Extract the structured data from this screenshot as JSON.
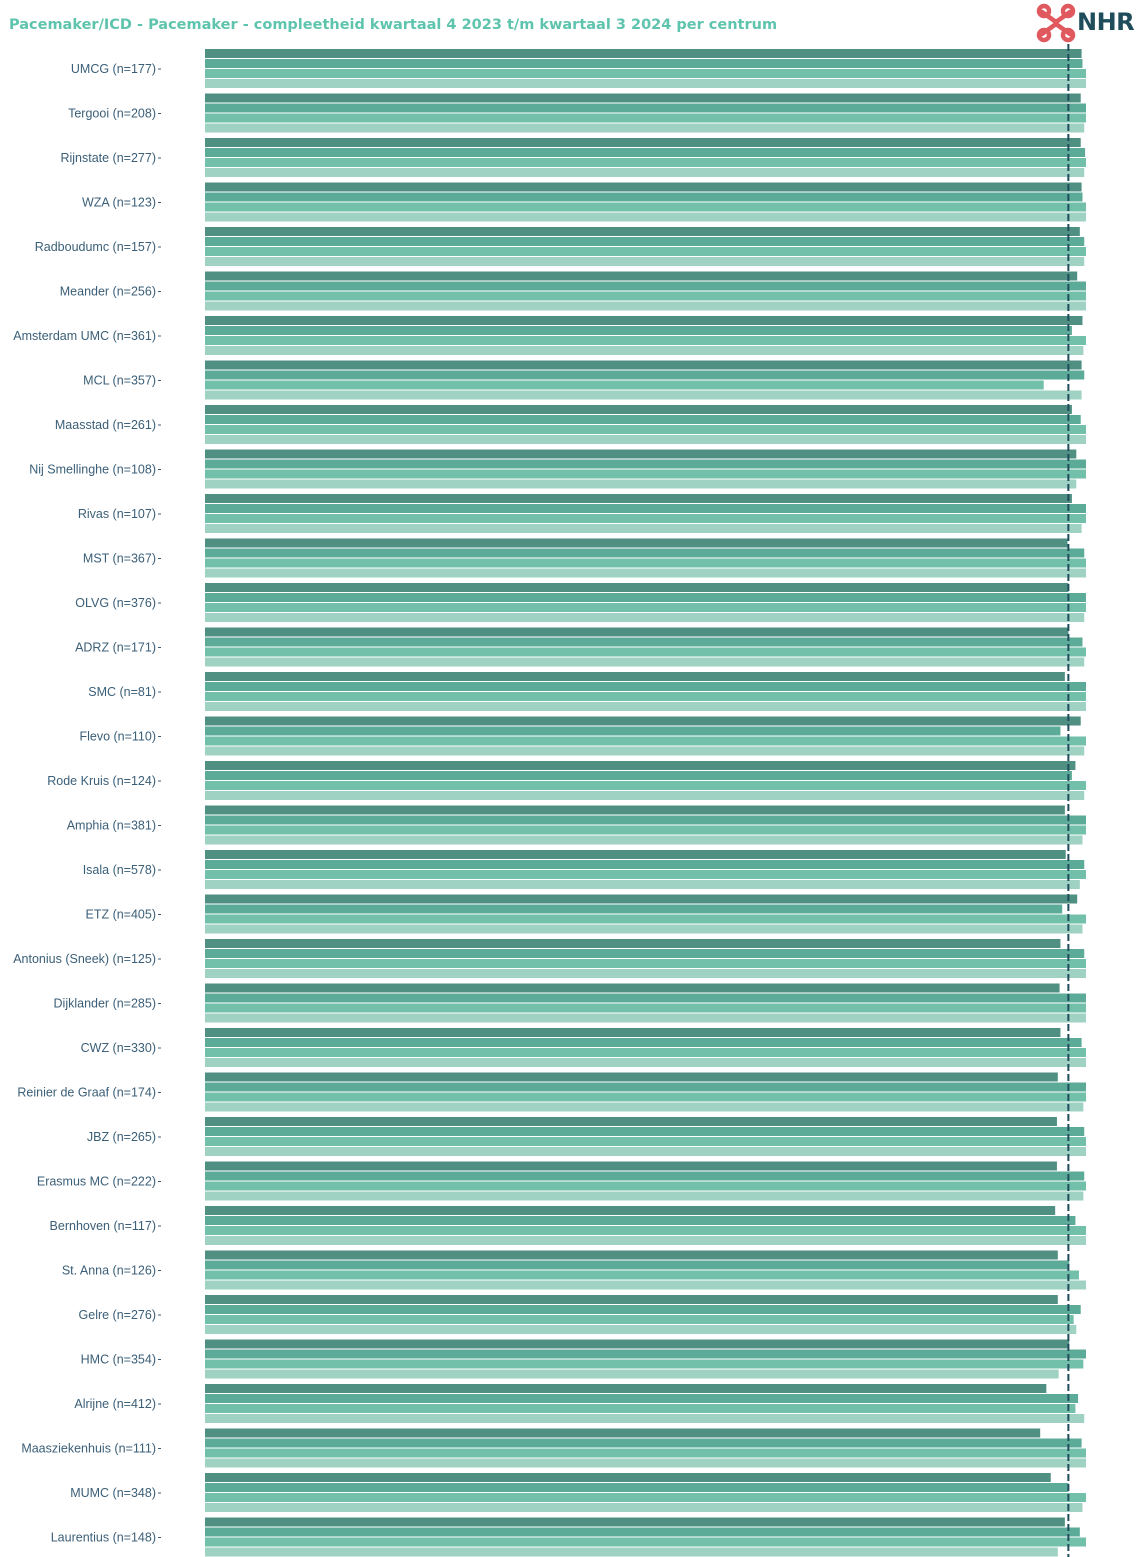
{
  "title": "Pacemaker/ICD - Pacemaker - compleetheid kwartaal 4 2023 t/m kwartaal 3 2024 per centrum",
  "logo": {
    "text": "NHR",
    "icon": "nhr-cross-logo-icon",
    "color": "#e0595f"
  },
  "colors": {
    "series": [
      "#4f9083",
      "#5caa98",
      "#72bfaa",
      "#9fd2c2"
    ],
    "reference_line": "#1f4d5c",
    "label": "#3b5f78"
  },
  "chart_data": {
    "type": "bar",
    "orientation": "horizontal",
    "grid": false,
    "legend": "none",
    "xlim": [
      0,
      100
    ],
    "reference_line": 98,
    "categories": [
      "UMCG (n=177)",
      "Tergooi (n=208)",
      "Rijnstate (n=277)",
      "WZA (n=123)",
      "Radboudumc (n=157)",
      "Meander (n=256)",
      "Amsterdam UMC (n=361)",
      "MCL (n=357)",
      "Maasstad (n=261)",
      "Nij Smellinghe (n=108)",
      "Rivas (n=107)",
      "MST (n=367)",
      "OLVG (n=376)",
      "ADRZ (n=171)",
      "SMC (n=81)",
      "Flevo (n=110)",
      "Rode Kruis (n=124)",
      "Amphia (n=381)",
      "Isala (n=578)",
      "ETZ (n=405)",
      "Antonius (Sneek) (n=125)",
      "Dijklander (n=285)",
      "CWZ (n=330)",
      "Reinier de Graaf (n=174)",
      "JBZ (n=265)",
      "Erasmus MC (n=222)",
      "Bernhoven (n=117)",
      "St. Anna (n=126)",
      "Gelre (n=276)",
      "HMC (n=354)",
      "Alrijne (n=412)",
      "Maasziekenhuis (n=111)",
      "MUMC (n=348)",
      "Laurentius (n=148)"
    ],
    "series": [
      {
        "values": [
          99.5,
          99.4,
          99.4,
          99.5,
          99.3,
          99.0,
          99.6,
          99.5,
          98.4,
          98.9,
          98.4,
          97.9,
          98.0,
          98.0,
          97.6,
          99.4,
          98.8,
          97.6,
          97.7,
          99.0,
          97.1,
          97.0,
          97.1,
          96.8,
          96.7,
          96.7,
          96.5,
          96.8,
          96.8,
          98.1,
          95.5,
          94.8,
          96.0,
          97.6
        ]
      },
      {
        "values": [
          99.6,
          100,
          99.9,
          99.6,
          99.8,
          100,
          98.4,
          99.8,
          99.4,
          100,
          100,
          99.8,
          100,
          99.6,
          100,
          97.1,
          98.4,
          100,
          99.8,
          97.3,
          99.8,
          100,
          99.5,
          100,
          99.8,
          99.8,
          98.8,
          98.1,
          99.4,
          100,
          99.1,
          99.5,
          98.0,
          99.3
        ]
      },
      {
        "values": [
          100,
          100,
          100,
          100,
          100,
          100,
          100,
          95.2,
          100,
          100,
          100,
          100,
          100,
          100,
          100,
          100,
          100,
          100,
          100,
          100,
          100,
          100,
          100,
          100,
          100,
          100,
          100,
          99.2,
          98.6,
          99.7,
          98.8,
          100,
          100,
          100
        ]
      },
      {
        "values": [
          100,
          99.8,
          99.8,
          100,
          99.8,
          100,
          99.7,
          99.5,
          100,
          98.9,
          99.5,
          100,
          99.8,
          99.8,
          100,
          99.8,
          99.8,
          99.6,
          99.3,
          99.6,
          100,
          100,
          100,
          99.7,
          100,
          99.7,
          100,
          100,
          98.9,
          96.9,
          99.8,
          100,
          99.6,
          96.8
        ]
      }
    ]
  }
}
